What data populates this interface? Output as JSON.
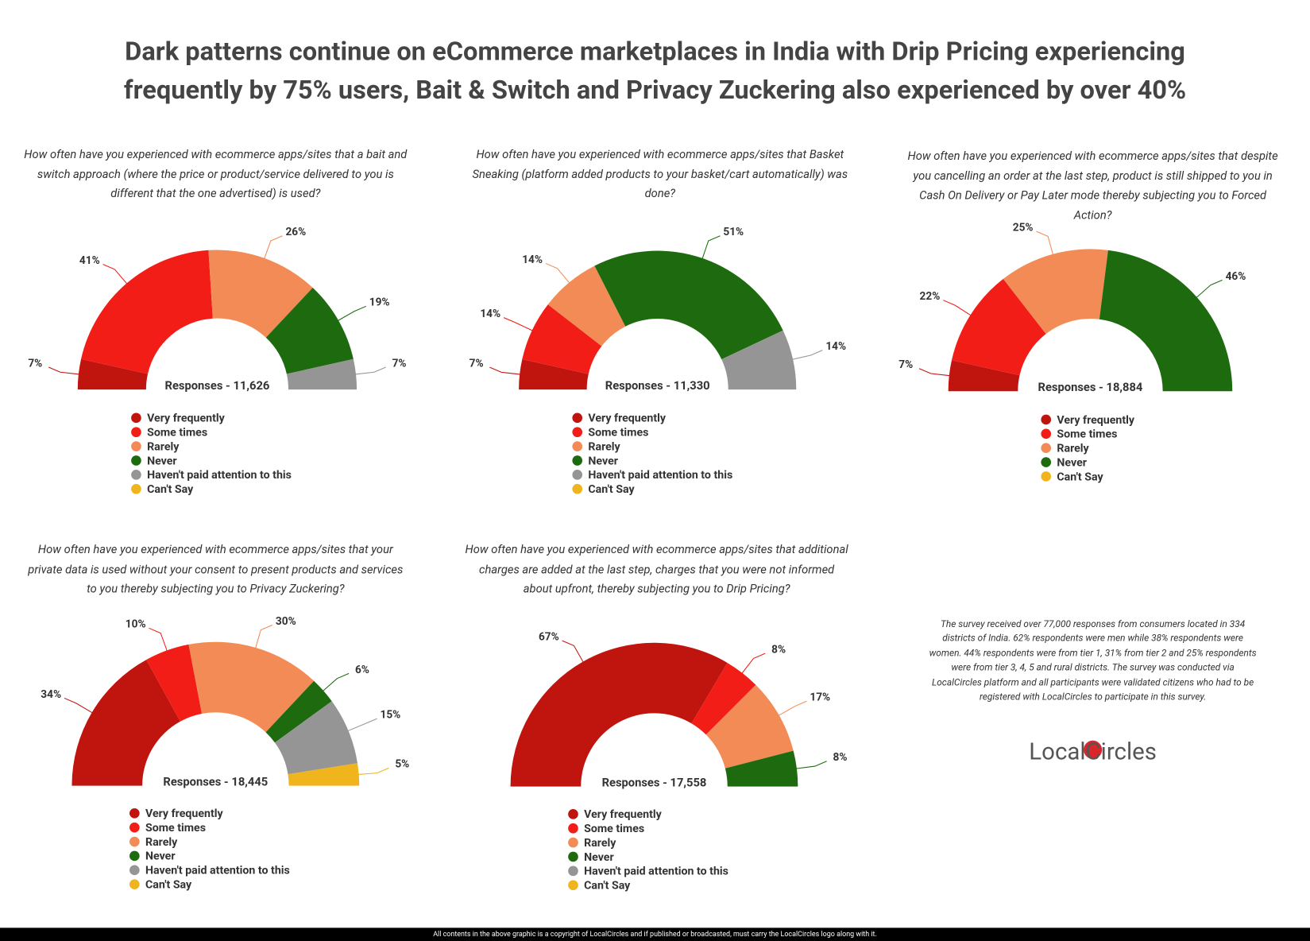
{
  "header": {
    "title": [
      "Dark patterns continue on eCommerce marketplaces in India with Drip Pricing experiencing",
      "frequently by 75% users, Bait & Switch and Privacy Zuckering also experienced by over 40%"
    ]
  },
  "chart_data": [
    {
      "type": "pie",
      "title": "How often have you experienced with ecommerce apps/sites that a bait and switch approach (where the price or product/service delivered to you is different that the one advertised) is used?",
      "subtitle": "Responses - 11,626",
      "categories": [
        "Very frequently",
        "Some times",
        "Rarely",
        "Never",
        "Haven't paid attention to this",
        "Can't Say"
      ],
      "values": [
        7,
        41,
        26,
        19,
        7,
        null
      ],
      "value_labels": [
        "7%",
        "41%",
        "26%",
        "19%",
        "7%",
        null
      ],
      "colors": [
        "#c0140f",
        "#f21d17",
        "#f28b55",
        "#1e6b0f",
        "#959595",
        "#f0b41c"
      ]
    },
    {
      "type": "pie",
      "title": "How often have you experienced with ecommerce apps/sites that Basket Sneaking (platform added products to your basket/cart automatically) was done?",
      "subtitle": "Responses - 11,330",
      "categories": [
        "Very frequently",
        "Some times",
        "Rarely",
        "Never",
        "Haven't paid attention to this",
        "Can't Say"
      ],
      "values": [
        7,
        14,
        14,
        51,
        14,
        null
      ],
      "value_labels": [
        "7%",
        "14%",
        "14%",
        "51%",
        "14%",
        null
      ],
      "colors": [
        "#c0140f",
        "#f21d17",
        "#f28b55",
        "#1e6b0f",
        "#959595",
        "#f0b41c"
      ]
    },
    {
      "type": "pie",
      "title": "How often have you experienced with ecommerce apps/sites that despite you cancelling an order at the last step, product is still shipped to you in Cash On Delivery or Pay Later mode thereby subjecting you to Forced Action?",
      "subtitle": "Responses - 18,884",
      "categories": [
        "Very frequently",
        "Some times",
        "Rarely",
        "Never",
        "Can't Say"
      ],
      "values": [
        7,
        22,
        25,
        46,
        null
      ],
      "value_labels": [
        "7%",
        "22%",
        "25%",
        "46%",
        null
      ],
      "colors": [
        "#c0140f",
        "#f21d17",
        "#f28b55",
        "#1e6b0f",
        "#f0b41c"
      ]
    },
    {
      "type": "pie",
      "title": "How often have you experienced with ecommerce apps/sites that your private data is used without your consent to present products and services to you thereby subjecting you to Privacy Zuckering?",
      "subtitle": "Responses - 18,445",
      "categories": [
        "Very frequently",
        "Some times",
        "Rarely",
        "Never",
        "Haven't paid attention to this",
        "Can't Say"
      ],
      "values": [
        34,
        10,
        30,
        6,
        15,
        5
      ],
      "value_labels": [
        "34%",
        "10%",
        "30%",
        "6%",
        "15%",
        "5%"
      ],
      "colors": [
        "#c0140f",
        "#f21d17",
        "#f28b55",
        "#1e6b0f",
        "#959595",
        "#f0b41c"
      ]
    },
    {
      "type": "pie",
      "title": "How often have you experienced with ecommerce apps/sites that additional charges are added at the last step, charges that you were not informed about upfront, thereby subjecting you to Drip Pricing?",
      "subtitle": "Responses - 17,558",
      "categories": [
        "Very frequently",
        "Some times",
        "Rarely",
        "Never",
        "Haven't paid attention to this",
        "Can't Say"
      ],
      "values": [
        67,
        8,
        17,
        8,
        null,
        null
      ],
      "value_labels": [
        "67%",
        "8%",
        "17%",
        "8%",
        null,
        null
      ],
      "colors": [
        "#c0140f",
        "#f21d17",
        "#f28b55",
        "#1e6b0f",
        "#959595",
        "#f0b41c"
      ]
    }
  ],
  "note": "The survey received over 77,000 responses from consumers located in 334 districts of India. 62% respondents were men while 38% respondents were women. 44% respondents were from tier 1, 31% from tier 2 and 25% respondents were from tier 3, 4, 5 and rural districts. The survey was conducted via LocalCircles platform and all participants were validated citizens who had to be registered with LocalCircles to participate in this survey.",
  "logo": "LocalCircles",
  "footer": "All contents in the above graphic is a copyright of LocalCircles and if published or broadcasted, must carry the LocalCircles logo along with it."
}
